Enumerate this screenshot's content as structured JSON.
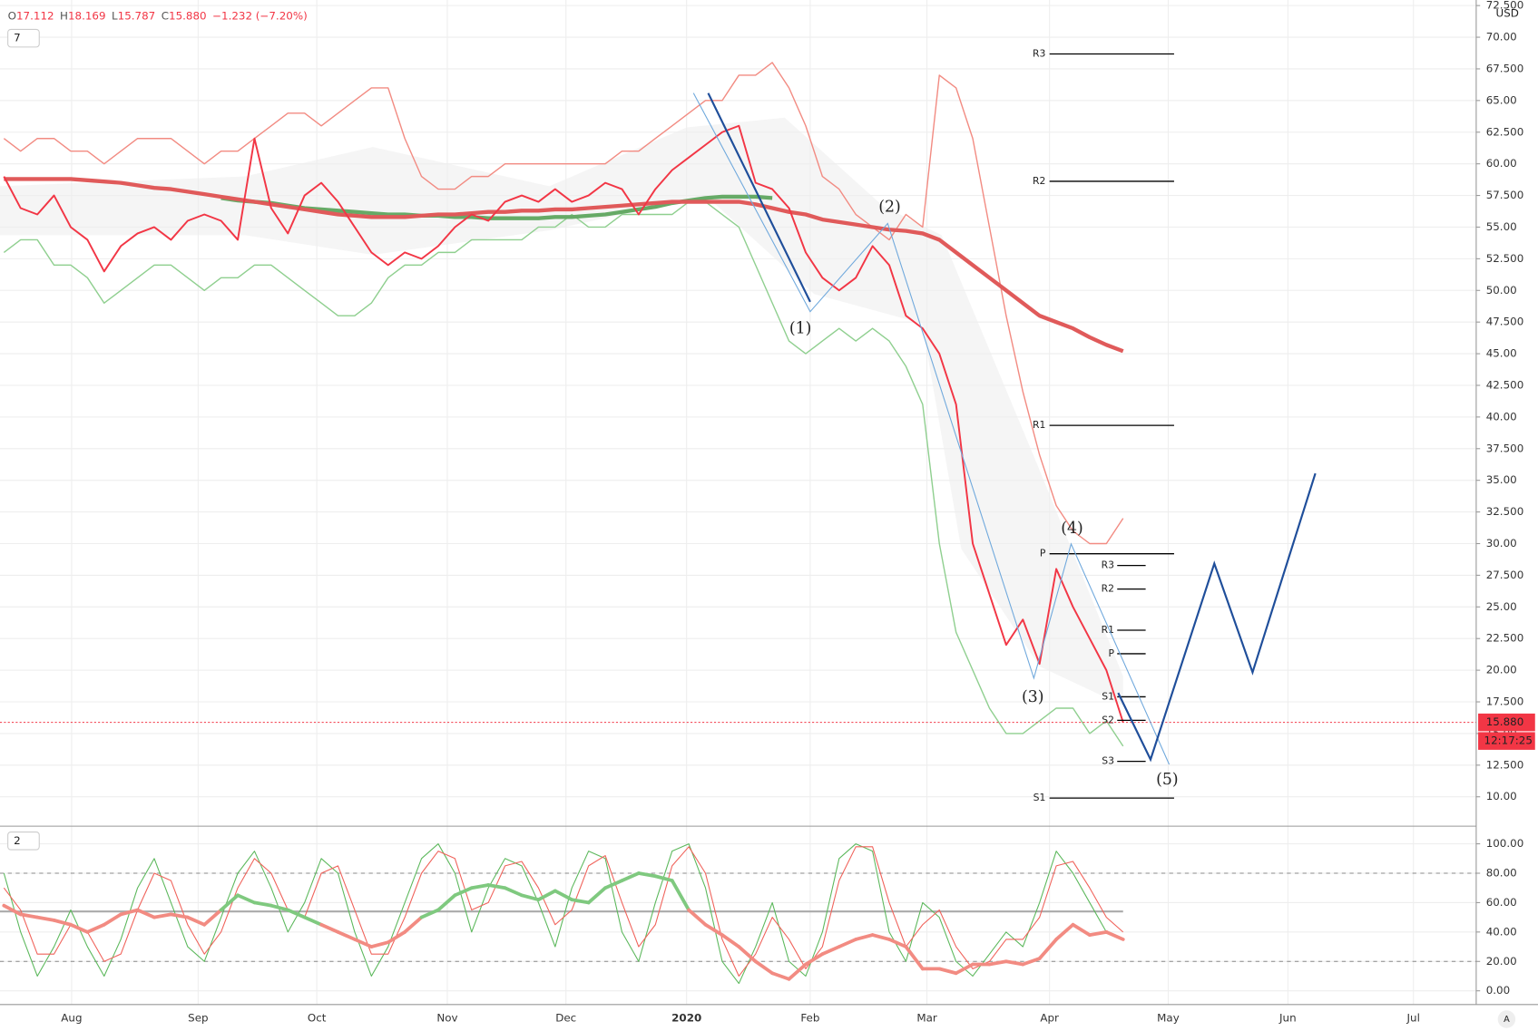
{
  "chart_data": {
    "type": "line",
    "header": {
      "items": [
        {
          "key": "O",
          "value": "17.112"
        },
        {
          "key": "H",
          "value": "18.169"
        },
        {
          "key": "L",
          "value": "15.787"
        },
        {
          "key": "C",
          "value": "15.880"
        }
      ],
      "change": "−1.232 (−7.20%)"
    },
    "indicator_toggle": "7",
    "oscillator_toggle": "2",
    "currency": "USD",
    "x_labels": [
      "Aug",
      "Sep",
      "Oct",
      "Nov",
      "Dec",
      "2020",
      "Feb",
      "Mar",
      "Apr",
      "May",
      "Jun",
      "Jul"
    ],
    "ylim": [
      7.68,
      72.94
    ],
    "yticks": [
      {
        "value": 10,
        "label": "10.00"
      },
      {
        "value": 12.5,
        "label": "12.500"
      },
      {
        "value": 15,
        "label": "15.00"
      },
      {
        "value": 17.5,
        "label": "17.500"
      },
      {
        "value": 20,
        "label": "20.00"
      },
      {
        "value": 22.5,
        "label": "22.500"
      },
      {
        "value": 25,
        "label": "25.00"
      },
      {
        "value": 27.5,
        "label": "27.500"
      },
      {
        "value": 30,
        "label": "30.00"
      },
      {
        "value": 32.5,
        "label": "32.500"
      },
      {
        "value": 35,
        "label": "35.00"
      },
      {
        "value": 37.5,
        "label": "37.500"
      },
      {
        "value": 40,
        "label": "40.00"
      },
      {
        "value": 42.5,
        "label": "42.500"
      },
      {
        "value": 45,
        "label": "45.00"
      },
      {
        "value": 47.5,
        "label": "47.500"
      },
      {
        "value": 50,
        "label": "50.00"
      },
      {
        "value": 52.5,
        "label": "52.500"
      },
      {
        "value": 55,
        "label": "55.00"
      },
      {
        "value": 57.5,
        "label": "57.500"
      },
      {
        "value": 60,
        "label": "60.00"
      },
      {
        "value": 62.5,
        "label": "62.500"
      },
      {
        "value": 65,
        "label": "65.00"
      },
      {
        "value": 67.5,
        "label": "67.500"
      },
      {
        "value": 70,
        "label": "70.00"
      },
      {
        "value": 72.5,
        "label": "72.500"
      }
    ],
    "series": [
      {
        "color": "#f28b82",
        "width": 1.3,
        "values": [
          62,
          61,
          62,
          62,
          61,
          61,
          60,
          61,
          62,
          62,
          62,
          61,
          60,
          61,
          61,
          62,
          63,
          64,
          64,
          63,
          64,
          65,
          66,
          66,
          62,
          59,
          58,
          58,
          59,
          59,
          60,
          60,
          60,
          60,
          60,
          60,
          60,
          61,
          61,
          62,
          63,
          64,
          65,
          65,
          67,
          67,
          68,
          66,
          63,
          59,
          58,
          56,
          55,
          54,
          56,
          55,
          67,
          66,
          62,
          55,
          48,
          42,
          37,
          33,
          31,
          30,
          30,
          32
        ]
      },
      {
        "color": "#8fcf8f",
        "width": 1.3,
        "values": [
          53,
          54,
          54,
          52,
          52,
          51,
          49,
          50,
          51,
          52,
          52,
          51,
          50,
          51,
          51,
          52,
          52,
          51,
          50,
          49,
          48,
          48,
          49,
          51,
          52,
          52,
          53,
          53,
          54,
          54,
          54,
          54,
          55,
          55,
          56,
          55,
          55,
          56,
          56,
          56,
          56,
          57,
          57,
          56,
          55,
          52,
          49,
          46,
          45,
          46,
          47,
          46,
          47,
          46,
          44,
          41,
          30,
          23,
          20,
          17,
          15,
          15,
          16,
          17,
          17,
          15,
          16,
          14
        ]
      },
      {
        "color": "#66aa66",
        "width": 4,
        "values": [
          null,
          null,
          null,
          null,
          null,
          null,
          null,
          null,
          null,
          null,
          null,
          null,
          null,
          57.3,
          57.1,
          57,
          56.9,
          56.7,
          56.5,
          56.4,
          56.3,
          56.2,
          56.1,
          56,
          56,
          55.9,
          55.9,
          55.8,
          55.8,
          55.7,
          55.7,
          55.7,
          55.7,
          55.8,
          55.8,
          55.9,
          56,
          56.2,
          56.4,
          56.6,
          56.9,
          57.1,
          57.3,
          57.4,
          57.4,
          57.4,
          57.3,
          null,
          null,
          null,
          null,
          null,
          null,
          null,
          null,
          null,
          null,
          null,
          null,
          null,
          null,
          null,
          null,
          null,
          null,
          null,
          null,
          null
        ]
      },
      {
        "color": "#e05a5a",
        "width": 4,
        "values": [
          58.8,
          58.8,
          58.8,
          58.8,
          58.8,
          58.7,
          58.6,
          58.5,
          58.3,
          58.1,
          58,
          57.8,
          57.6,
          57.4,
          57.2,
          57,
          56.8,
          56.6,
          56.4,
          56.2,
          56,
          55.9,
          55.8,
          55.8,
          55.8,
          55.9,
          56,
          56,
          56.1,
          56.2,
          56.2,
          56.3,
          56.3,
          56.4,
          56.4,
          56.5,
          56.6,
          56.7,
          56.8,
          56.9,
          57,
          57,
          57,
          57,
          57,
          56.8,
          56.5,
          56.2,
          56,
          55.6,
          55.4,
          55.2,
          55,
          54.8,
          54.7,
          54.5,
          54,
          53,
          52,
          51,
          50,
          49,
          48,
          47.5,
          47,
          46.3,
          45.7,
          45.2
        ]
      },
      {
        "color": "#f23645",
        "width": 1.8,
        "values": [
          59,
          56.5,
          56,
          57.5,
          55,
          54,
          51.5,
          53.5,
          54.5,
          55,
          54,
          55.5,
          56,
          55.5,
          54,
          62,
          56.5,
          54.5,
          57.5,
          58.5,
          57,
          55,
          53,
          52,
          53,
          52.5,
          53.5,
          55,
          56,
          55.5,
          57,
          57.5,
          57,
          58,
          57,
          57.5,
          58.5,
          58,
          56,
          58,
          59.5,
          60.5,
          61.5,
          62.5,
          63,
          58.5,
          58,
          56.5,
          53,
          51,
          50,
          51,
          53.5,
          52,
          48,
          47,
          45,
          41,
          30,
          26,
          22,
          24,
          20.5,
          28,
          25,
          22.5,
          20,
          15.88
        ]
      }
    ],
    "pivots_main": [
      {
        "label": "R3",
        "value": 68.68
      },
      {
        "label": "R2",
        "value": 58.62
      },
      {
        "label": "R1",
        "value": 39.34
      },
      {
        "label": "P",
        "value": 29.2
      },
      {
        "label": "S1",
        "value": 9.9
      }
    ],
    "pivots_minor": [
      {
        "label": "R3",
        "value": 28.27
      },
      {
        "label": "R2",
        "value": 26.41
      },
      {
        "label": "R1",
        "value": 23.16
      },
      {
        "label": "P",
        "value": 21.3
      },
      {
        "label": "S1",
        "value": 17.9
      },
      {
        "label": "S2",
        "value": 16.04
      },
      {
        "label": "S3",
        "value": 12.8
      }
    ],
    "last_price": {
      "value": 15.88,
      "label": "15.880",
      "countdown": "12:17:25",
      "color": "#f23645"
    },
    "waves": [
      "(1)",
      "(2)",
      "(3)",
      "(4)",
      "(5)"
    ],
    "oscillator": {
      "ylim": [
        -9.33,
        110.67
      ],
      "yticks": [
        {
          "value": 0,
          "label": "0.00"
        },
        {
          "value": 20,
          "label": "20.00"
        },
        {
          "value": 40,
          "label": "40.00"
        },
        {
          "value": 60,
          "label": "60.00"
        },
        {
          "value": 80,
          "label": "80.00"
        },
        {
          "value": 100,
          "label": "100.00"
        }
      ],
      "levels": [
        20,
        80
      ],
      "mid_level": 54,
      "series": [
        {
          "color": "#5cb85c",
          "width": 1,
          "values": [
            80,
            40,
            10,
            30,
            55,
            30,
            10,
            35,
            70,
            90,
            60,
            30,
            20,
            50,
            80,
            95,
            70,
            40,
            60,
            90,
            80,
            40,
            10,
            30,
            60,
            90,
            100,
            80,
            40,
            70,
            90,
            85,
            60,
            30,
            70,
            95,
            90,
            40,
            20,
            60,
            95,
            100,
            70,
            20,
            5,
            30,
            60,
            20,
            10,
            40,
            90,
            100,
            95,
            40,
            20,
            60,
            50,
            20,
            10,
            25,
            40,
            30,
            60,
            95,
            80,
            60,
            40,
            35
          ]
        },
        {
          "color": "#f0625a",
          "width": 1,
          "values": [
            70,
            55,
            25,
            25,
            45,
            40,
            20,
            25,
            55,
            80,
            75,
            45,
            25,
            40,
            70,
            90,
            80,
            55,
            50,
            80,
            85,
            55,
            25,
            25,
            50,
            80,
            95,
            90,
            55,
            60,
            85,
            88,
            70,
            45,
            55,
            85,
            92,
            60,
            30,
            45,
            85,
            98,
            80,
            35,
            10,
            25,
            50,
            35,
            15,
            30,
            75,
            98,
            98,
            60,
            30,
            45,
            55,
            30,
            15,
            20,
            35,
            35,
            50,
            85,
            88,
            70,
            50,
            40
          ]
        }
      ],
      "thick": {
        "values": [
          58,
          52,
          50,
          48,
          45,
          40,
          45,
          52,
          55,
          50,
          52,
          50,
          45,
          55,
          65,
          60,
          58,
          55,
          50,
          45,
          40,
          35,
          30,
          33,
          40,
          50,
          55,
          65,
          70,
          72,
          70,
          65,
          62,
          68,
          62,
          60,
          70,
          75,
          80,
          78,
          75,
          55,
          45,
          38,
          30,
          20,
          12,
          8,
          18,
          25,
          30,
          35,
          38,
          35,
          30,
          15,
          15,
          12,
          18,
          18,
          20,
          18,
          22,
          35,
          45,
          38,
          40,
          35
        ],
        "segment_colors": [
          "#f28b82",
          "#f28b82",
          "#f28b82",
          "#f28b82",
          "#f28b82",
          "#f28b82",
          "#f28b82",
          "#f28b82",
          "#f28b82",
          "#f28b82",
          "#f28b82",
          "#f28b82",
          "#f28b82",
          "#7fc97f",
          "#7fc97f",
          "#7fc97f",
          "#7fc97f",
          "#7fc97f",
          "#7fc97f",
          "#f28b82",
          "#f28b82",
          "#f28b82",
          "#f28b82",
          "#f28b82",
          "#f28b82",
          "#7fc97f",
          "#7fc97f",
          "#7fc97f",
          "#7fc97f",
          "#7fc97f",
          "#7fc97f",
          "#7fc97f",
          "#7fc97f",
          "#7fc97f",
          "#7fc97f",
          "#7fc97f",
          "#7fc97f",
          "#7fc97f",
          "#7fc97f",
          "#7fc97f",
          "#7fc97f",
          "#f28b82",
          "#f28b82",
          "#f28b82",
          "#f28b82",
          "#f28b82",
          "#f28b82",
          "#f28b82",
          "#f28b82",
          "#f28b82",
          "#f28b82",
          "#f28b82",
          "#f28b82",
          "#f28b82",
          "#f28b82",
          "#f28b82",
          "#f28b82",
          "#f28b82",
          "#f28b82",
          "#f28b82",
          "#f28b82",
          "#f28b82",
          "#f28b82",
          "#f28b82",
          "#f28b82",
          "#f28b82",
          "#f28b82"
        ]
      }
    }
  }
}
